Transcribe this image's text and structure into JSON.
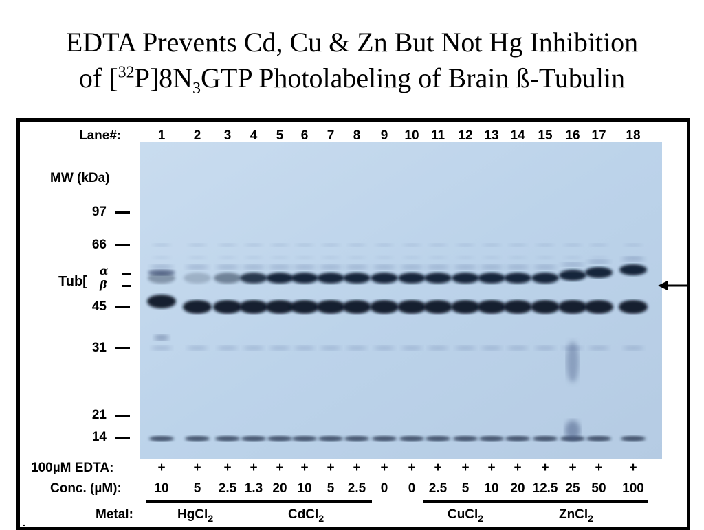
{
  "title": {
    "line1": "EDTA Prevents  Cd, Cu & Zn But Not Hg Inhibition",
    "line2_pre": "of [",
    "line2_sup": "32",
    "line2_mid": "P]8N",
    "line2_sub": "3",
    "line2_post": "GTP Photolabeling of Brain ß-Tubulin"
  },
  "figure": {
    "lane_header": "Lane#:",
    "lanes": [
      "1",
      "2",
      "3",
      "4",
      "5",
      "6",
      "7",
      "8",
      "9",
      "10",
      "11",
      "12",
      "13",
      "14",
      "15",
      "16",
      "17",
      "18"
    ],
    "mw_header": "MW (kDa)",
    "mw_markers": [
      "97",
      "66",
      "45",
      "31",
      "21",
      "14"
    ],
    "tub_label": "Tub[",
    "alpha": "α",
    "beta": "β",
    "edta_label": "100µM EDTA:",
    "edta": [
      "+",
      "+",
      "+",
      "+",
      "+",
      "+",
      "+",
      "+",
      "+",
      "+",
      "+",
      "+",
      "+",
      "+",
      "+",
      "+",
      "+",
      "+"
    ],
    "conc_label": "Conc. (µM):",
    "conc": [
      "10",
      "5",
      "2.5",
      "1.3",
      "20",
      "10",
      "5",
      "2.5",
      "0",
      "0",
      "2.5",
      "5",
      "10",
      "20",
      "12.5",
      "25",
      "50",
      "100"
    ],
    "metal_label": "Metal:",
    "metals": [
      {
        "name": "HgCl",
        "sub": "2"
      },
      {
        "name": "CdCl",
        "sub": "2"
      },
      {
        "name": "CuCl",
        "sub": "2"
      },
      {
        "name": "ZnCl",
        "sub": "2"
      }
    ],
    "footnote": "."
  }
}
